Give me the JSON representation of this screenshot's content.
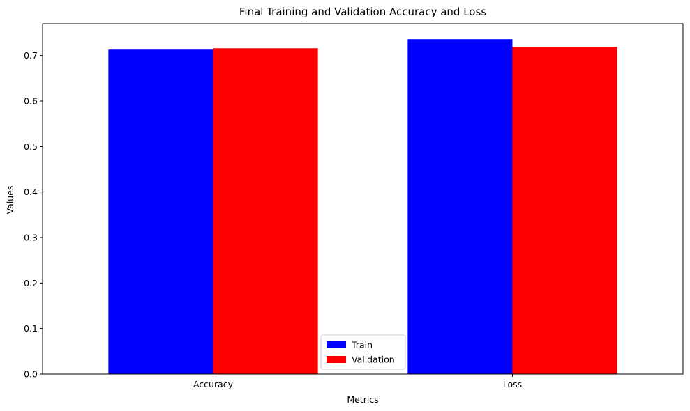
{
  "chart_data": {
    "type": "bar",
    "title": "Final Training and Validation Accuracy and Loss",
    "xlabel": "Metrics",
    "ylabel": "Values",
    "categories": [
      "Accuracy",
      "Loss"
    ],
    "series": [
      {
        "name": "Train",
        "color": "#0000ff",
        "values": [
          0.713,
          0.736
        ]
      },
      {
        "name": "Validation",
        "color": "#ff0000",
        "values": [
          0.716,
          0.719
        ]
      }
    ],
    "ylim": [
      0,
      0.77
    ],
    "yticks": [
      "0.0",
      "0.1",
      "0.2",
      "0.3",
      "0.4",
      "0.5",
      "0.6",
      "0.7"
    ],
    "grid": false,
    "legend_position": "bottom-center"
  }
}
